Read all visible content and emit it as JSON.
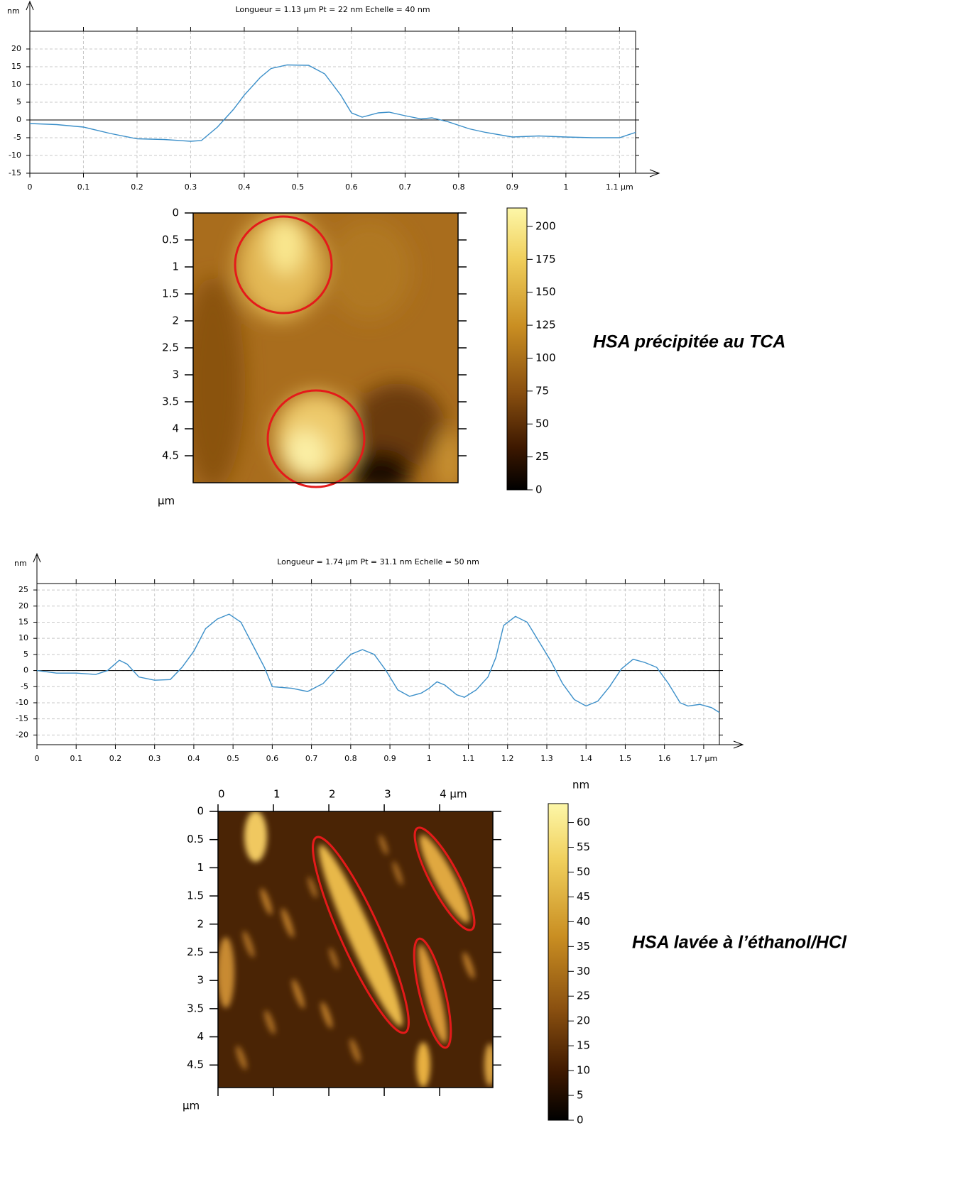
{
  "chart_data": [
    {
      "type": "line",
      "title": "Longueur = 1.13 µm  Pt = 22 nm  Echelle = 40 nm",
      "ylabel": "nm",
      "grid": true,
      "color": "#3b8fc9",
      "xlim": [
        0,
        1.13
      ],
      "ylim": [
        -15,
        25
      ],
      "xticks": [
        0,
        0.1,
        0.2,
        0.3,
        0.4,
        0.5,
        0.6,
        0.7,
        0.8,
        0.9,
        1,
        {
          "value": 1.1,
          "label": "1.1 µm"
        }
      ],
      "yticks": [
        -15,
        -10,
        -5,
        0,
        5,
        10,
        15,
        20
      ],
      "x": [
        0,
        0.05,
        0.1,
        0.15,
        0.2,
        0.25,
        0.3,
        0.32,
        0.35,
        0.38,
        0.4,
        0.43,
        0.45,
        0.48,
        0.52,
        0.55,
        0.58,
        0.6,
        0.62,
        0.65,
        0.67,
        0.7,
        0.73,
        0.75,
        0.78,
        0.82,
        0.85,
        0.9,
        0.95,
        1.0,
        1.05,
        1.1,
        1.13
      ],
      "values": [
        -1,
        -1.3,
        -2,
        -3.8,
        -5.3,
        -5.5,
        -6,
        -5.8,
        -2,
        3,
        7,
        12,
        14.5,
        15.5,
        15.4,
        13,
        7,
        2,
        0.8,
        2,
        2.2,
        1.2,
        0.3,
        0.6,
        -0.5,
        -2.5,
        -3.5,
        -4.8,
        -4.5,
        -4.8,
        -5,
        -5,
        -3.5
      ]
    },
    {
      "type": "image",
      "xlabel": "µm",
      "ylim": [
        0,
        5
      ],
      "yticks": [
        0,
        0.5,
        1,
        1.5,
        2,
        2.5,
        3,
        3.5,
        4,
        4.5
      ],
      "colorbar": {
        "lim": [
          0,
          214
        ],
        "ticks": [
          0,
          25,
          50,
          75,
          100,
          125,
          150,
          175,
          200
        ]
      },
      "caption": "HSA précipitée au TCA"
    },
    {
      "type": "line",
      "title": "Longueur = 1.74 µm  Pt = 31.1 nm  Echelle = 50 nm",
      "ylabel": "nm",
      "grid": true,
      "color": "#3b8fc9",
      "xlim": [
        0,
        1.74
      ],
      "ylim": [
        -23,
        27
      ],
      "xticks": [
        0,
        0.1,
        0.2,
        0.3,
        0.4,
        0.5,
        0.6,
        0.7,
        0.8,
        0.9,
        1,
        1.1,
        1.2,
        1.3,
        1.4,
        1.5,
        1.6,
        {
          "value": 1.7,
          "label": "1.7 µm"
        }
      ],
      "yticks": [
        -20,
        -15,
        -10,
        -5,
        0,
        5,
        10,
        15,
        20,
        25
      ],
      "x": [
        0,
        0.05,
        0.1,
        0.15,
        0.18,
        0.21,
        0.23,
        0.26,
        0.3,
        0.34,
        0.37,
        0.4,
        0.43,
        0.46,
        0.49,
        0.52,
        0.55,
        0.58,
        0.6,
        0.65,
        0.69,
        0.73,
        0.76,
        0.8,
        0.83,
        0.86,
        0.89,
        0.92,
        0.95,
        0.98,
        1.0,
        1.02,
        1.04,
        1.07,
        1.09,
        1.12,
        1.15,
        1.17,
        1.19,
        1.22,
        1.25,
        1.28,
        1.31,
        1.34,
        1.37,
        1.4,
        1.43,
        1.46,
        1.49,
        1.52,
        1.55,
        1.58,
        1.61,
        1.64,
        1.66,
        1.69,
        1.72,
        1.74
      ],
      "values": [
        0,
        -0.8,
        -0.8,
        -1.2,
        0,
        3.2,
        2,
        -2,
        -3,
        -2.8,
        1,
        6,
        13,
        16,
        17.5,
        15,
        8,
        1,
        -5,
        -5.5,
        -6.5,
        -4,
        0,
        5,
        6.5,
        5,
        0,
        -6,
        -8,
        -7,
        -5.5,
        -3.5,
        -4.5,
        -7.5,
        -8.3,
        -6,
        -2,
        4,
        14,
        16.8,
        15,
        9,
        3,
        -4,
        -9,
        -11,
        -9.5,
        -5,
        0.5,
        3.5,
        2.5,
        1,
        -4,
        -10,
        -11,
        -10.5,
        -11.5,
        -13
      ]
    },
    {
      "type": "image",
      "xlabel": "µm",
      "xlim": [
        0,
        4.96
      ],
      "xticks": [
        0,
        1,
        2,
        3,
        {
          "value": 4,
          "label": "4 µm"
        }
      ],
      "ylim": [
        0,
        4.9
      ],
      "yticks": [
        0,
        0.5,
        1,
        1.5,
        2,
        2.5,
        3,
        3.5,
        4,
        4.5
      ],
      "colorbar": {
        "label": "nm",
        "lim": [
          0,
          63.8
        ],
        "ticks": [
          0,
          5,
          10,
          15,
          20,
          25,
          30,
          35,
          40,
          45,
          50,
          55,
          60
        ]
      },
      "caption": "HSA lavée à l’éthanol/HCl"
    }
  ]
}
